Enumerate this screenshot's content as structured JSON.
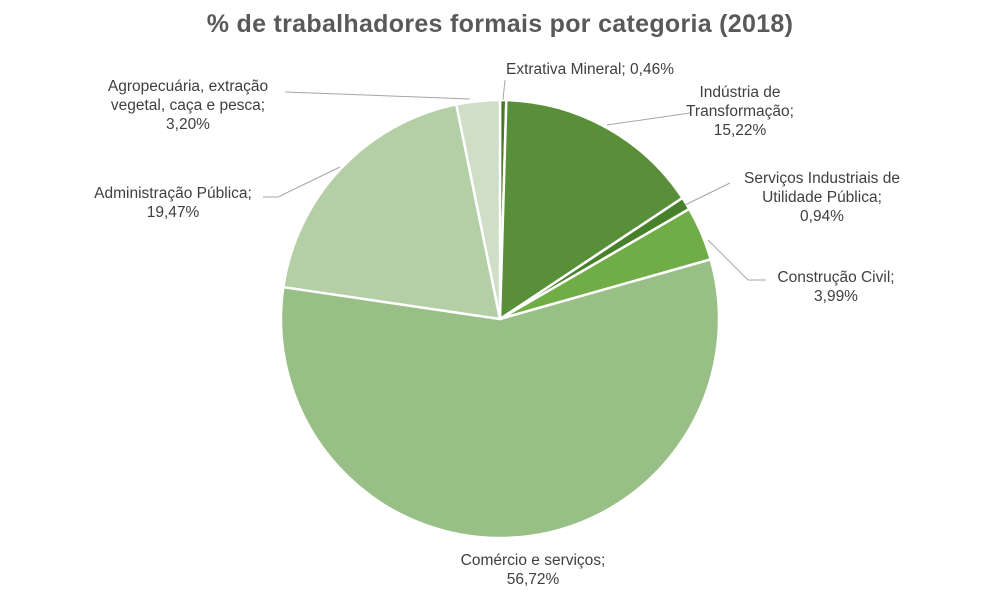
{
  "chart_data": {
    "type": "pie",
    "title": "% de trabalhadores formais por categoria (2018)",
    "slices": [
      {
        "label_lines": [
          "Extrativa Mineral; 0,46%"
        ],
        "value": 0.46,
        "color": "#4a7a2a"
      },
      {
        "label_lines": [
          "Indústria de",
          "Transformação;",
          "15,22%"
        ],
        "value": 15.22,
        "color": "#5a8f3a"
      },
      {
        "label_lines": [
          "Serviços Industriais de",
          "Utilidade Pública;",
          "0,94%"
        ],
        "value": 0.94,
        "color": "#47812a"
      },
      {
        "label_lines": [
          "Construção Civil;",
          "3,99%"
        ],
        "value": 3.99,
        "color": "#70ad47"
      },
      {
        "label_lines": [
          "Comércio e serviços;",
          "56,72%"
        ],
        "value": 56.72,
        "color": "#98bf85"
      },
      {
        "label_lines": [
          "Administração Pública;",
          "19,47%"
        ],
        "value": 19.47,
        "color": "#b4cfa6"
      },
      {
        "label_lines": [
          "Agropecuária, extração",
          "vegetal, caça e pesca;",
          "3,20%"
        ],
        "value": 3.2,
        "color": "#cfdfc7"
      }
    ]
  }
}
